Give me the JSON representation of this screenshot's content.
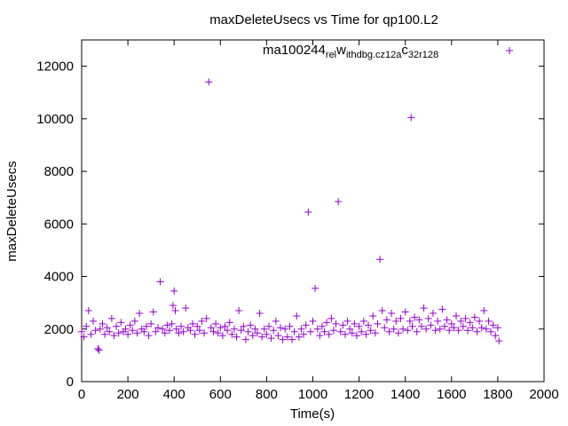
{
  "chart_data": {
    "type": "scatter",
    "title": "maxDeleteUsecs vs Time for qp100.L2",
    "xlabel": "Time(s)",
    "ylabel": "maxDeleteUsecs",
    "xlim": [
      0,
      2000
    ],
    "ylim": [
      0,
      13000
    ],
    "x_ticks": [
      "0",
      "200",
      "400",
      "600",
      "800",
      "1000",
      "1200",
      "1400",
      "1600",
      "1800",
      "2000"
    ],
    "y_ticks": [
      "0",
      "2000",
      "4000",
      "6000",
      "8000",
      "10000",
      "12000"
    ],
    "grid": false,
    "legend_position": "top-right",
    "series": [
      {
        "name": "ma100244relwithdbg.cz12ac32r128",
        "legend_parts": [
          {
            "text": "ma100244",
            "sub": false
          },
          {
            "text": "rel",
            "sub": true
          },
          {
            "text": "w",
            "sub": false
          },
          {
            "text": "ithdbg.cz12a",
            "sub": true
          },
          {
            "text": "c",
            "sub": false
          },
          {
            "text": "32r128",
            "sub": true
          }
        ],
        "color": "#9400d3",
        "marker": "plus",
        "points": [
          [
            0,
            1900
          ],
          [
            10,
            1700
          ],
          [
            20,
            2100
          ],
          [
            30,
            2700
          ],
          [
            40,
            1800
          ],
          [
            50,
            2300
          ],
          [
            60,
            1950
          ],
          [
            70,
            1250
          ],
          [
            75,
            1200
          ],
          [
            80,
            2000
          ],
          [
            90,
            2200
          ],
          [
            100,
            1800
          ],
          [
            110,
            2050
          ],
          [
            120,
            1900
          ],
          [
            130,
            2400
          ],
          [
            140,
            1750
          ],
          [
            150,
            2100
          ],
          [
            160,
            1850
          ],
          [
            170,
            2250
          ],
          [
            180,
            1900
          ],
          [
            190,
            2000
          ],
          [
            200,
            1800
          ],
          [
            210,
            2150
          ],
          [
            220,
            1950
          ],
          [
            230,
            2300
          ],
          [
            240,
            1850
          ],
          [
            250,
            2600
          ],
          [
            260,
            2000
          ],
          [
            270,
            1900
          ],
          [
            280,
            2100
          ],
          [
            290,
            1750
          ],
          [
            300,
            2200
          ],
          [
            310,
            2650
          ],
          [
            320,
            1900
          ],
          [
            330,
            2050
          ],
          [
            340,
            3800
          ],
          [
            350,
            2000
          ],
          [
            360,
            1850
          ],
          [
            370,
            2150
          ],
          [
            380,
            1950
          ],
          [
            390,
            2200
          ],
          [
            395,
            2900
          ],
          [
            400,
            3450
          ],
          [
            405,
            2700
          ],
          [
            410,
            2000
          ],
          [
            420,
            1850
          ],
          [
            430,
            2100
          ],
          [
            440,
            1900
          ],
          [
            450,
            2800
          ],
          [
            460,
            2050
          ],
          [
            470,
            1950
          ],
          [
            480,
            2200
          ],
          [
            490,
            1800
          ],
          [
            500,
            2100
          ],
          [
            510,
            1950
          ],
          [
            520,
            2300
          ],
          [
            530,
            1850
          ],
          [
            540,
            2400
          ],
          [
            550,
            11400
          ],
          [
            560,
            2050
          ],
          [
            570,
            1900
          ],
          [
            580,
            2200
          ],
          [
            590,
            1850
          ],
          [
            600,
            2050
          ],
          [
            610,
            1750
          ],
          [
            620,
            2100
          ],
          [
            630,
            1950
          ],
          [
            640,
            2250
          ],
          [
            650,
            1800
          ],
          [
            660,
            2000
          ],
          [
            670,
            1700
          ],
          [
            680,
            2700
          ],
          [
            690,
            1950
          ],
          [
            700,
            2100
          ],
          [
            710,
            1600
          ],
          [
            720,
            1900
          ],
          [
            730,
            2150
          ],
          [
            740,
            1750
          ],
          [
            750,
            2000
          ],
          [
            760,
            1850
          ],
          [
            770,
            2600
          ],
          [
            780,
            1700
          ],
          [
            790,
            2000
          ],
          [
            800,
            1800
          ],
          [
            810,
            2100
          ],
          [
            820,
            1650
          ],
          [
            830,
            1950
          ],
          [
            840,
            2300
          ],
          [
            850,
            1750
          ],
          [
            860,
            2050
          ],
          [
            870,
            1600
          ],
          [
            880,
            2000
          ],
          [
            890,
            1700
          ],
          [
            900,
            2100
          ],
          [
            910,
            1600
          ],
          [
            920,
            1900
          ],
          [
            930,
            2500
          ],
          [
            940,
            1700
          ],
          [
            950,
            2000
          ],
          [
            960,
            1800
          ],
          [
            970,
            2150
          ],
          [
            980,
            6450
          ],
          [
            990,
            1900
          ],
          [
            1000,
            2300
          ],
          [
            1010,
            3550
          ],
          [
            1020,
            2000
          ],
          [
            1030,
            1750
          ],
          [
            1040,
            2100
          ],
          [
            1050,
            1900
          ],
          [
            1060,
            2250
          ],
          [
            1070,
            1800
          ],
          [
            1080,
            2400
          ],
          [
            1090,
            1950
          ],
          [
            1100,
            2200
          ],
          [
            1110,
            6850
          ],
          [
            1120,
            1900
          ],
          [
            1130,
            2150
          ],
          [
            1140,
            1800
          ],
          [
            1150,
            2300
          ],
          [
            1160,
            2000
          ],
          [
            1170,
            1850
          ],
          [
            1180,
            2200
          ],
          [
            1190,
            1750
          ],
          [
            1200,
            2100
          ],
          [
            1210,
            1900
          ],
          [
            1220,
            2300
          ],
          [
            1230,
            1800
          ],
          [
            1240,
            2150
          ],
          [
            1250,
            1950
          ],
          [
            1260,
            2500
          ],
          [
            1270,
            1850
          ],
          [
            1280,
            2200
          ],
          [
            1290,
            4650
          ],
          [
            1300,
            2700
          ],
          [
            1310,
            2050
          ],
          [
            1320,
            2350
          ],
          [
            1330,
            1900
          ],
          [
            1340,
            2600
          ],
          [
            1350,
            2000
          ],
          [
            1360,
            2300
          ],
          [
            1370,
            1850
          ],
          [
            1380,
            2400
          ],
          [
            1390,
            2000
          ],
          [
            1400,
            2650
          ],
          [
            1410,
            1950
          ],
          [
            1420,
            2300
          ],
          [
            1425,
            10050
          ],
          [
            1430,
            2100
          ],
          [
            1440,
            2450
          ],
          [
            1450,
            1900
          ],
          [
            1460,
            2350
          ],
          [
            1470,
            2100
          ],
          [
            1480,
            2800
          ],
          [
            1490,
            2000
          ],
          [
            1500,
            2400
          ],
          [
            1510,
            2150
          ],
          [
            1520,
            2600
          ],
          [
            1530,
            1950
          ],
          [
            1540,
            2300
          ],
          [
            1550,
            2000
          ],
          [
            1560,
            2750
          ],
          [
            1570,
            2100
          ],
          [
            1580,
            2350
          ],
          [
            1590,
            1950
          ],
          [
            1600,
            2200
          ],
          [
            1610,
            2050
          ],
          [
            1620,
            2500
          ],
          [
            1630,
            1950
          ],
          [
            1640,
            2300
          ],
          [
            1650,
            2100
          ],
          [
            1660,
            2400
          ],
          [
            1670,
            1950
          ],
          [
            1680,
            2250
          ],
          [
            1690,
            2050
          ],
          [
            1700,
            2450
          ],
          [
            1710,
            1900
          ],
          [
            1720,
            2300
          ],
          [
            1730,
            2050
          ],
          [
            1740,
            2700
          ],
          [
            1750,
            2000
          ],
          [
            1760,
            2300
          ],
          [
            1770,
            1900
          ],
          [
            1780,
            2150
          ],
          [
            1790,
            1750
          ],
          [
            1800,
            2050
          ],
          [
            1805,
            1550
          ]
        ]
      }
    ]
  }
}
